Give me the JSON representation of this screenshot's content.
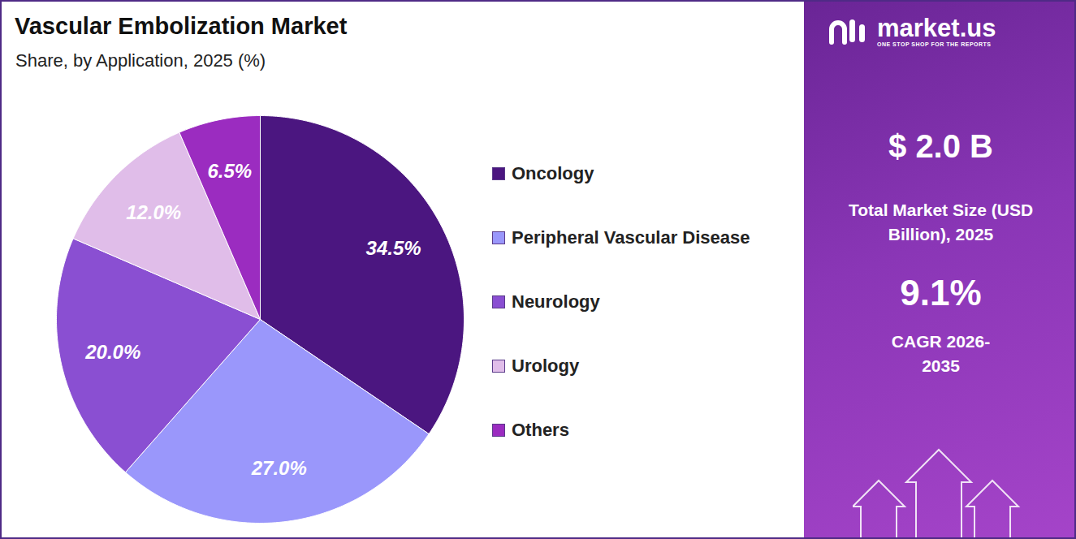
{
  "chart_data": {
    "type": "pie",
    "title": "Vascular Embolization Market",
    "subtitle": "Share, by Application, 2025 (%)",
    "categories": [
      "Oncology",
      "Peripheral Vascular Disease",
      "Neurology",
      "Urology",
      "Others"
    ],
    "values": [
      34.5,
      27.0,
      20.0,
      12.0,
      6.5
    ],
    "value_labels": [
      "34.5%",
      "27.0%",
      "20.0%",
      "12.0%",
      "6.5%"
    ],
    "colors": [
      "#4b1680",
      "#9a97fb",
      "#8a4fd2",
      "#e0bde9",
      "#9b2cc0"
    ],
    "data_labels": true,
    "legend": "right",
    "source": "market.us",
    "source_tagline": "ONE STOP SHOP FOR THE REPORTS",
    "annotations": [
      "$ 2.0 B",
      "Total Market Size (USD Billion), 2025",
      "9.1%",
      "CAGR 2026-2035"
    ]
  }
}
